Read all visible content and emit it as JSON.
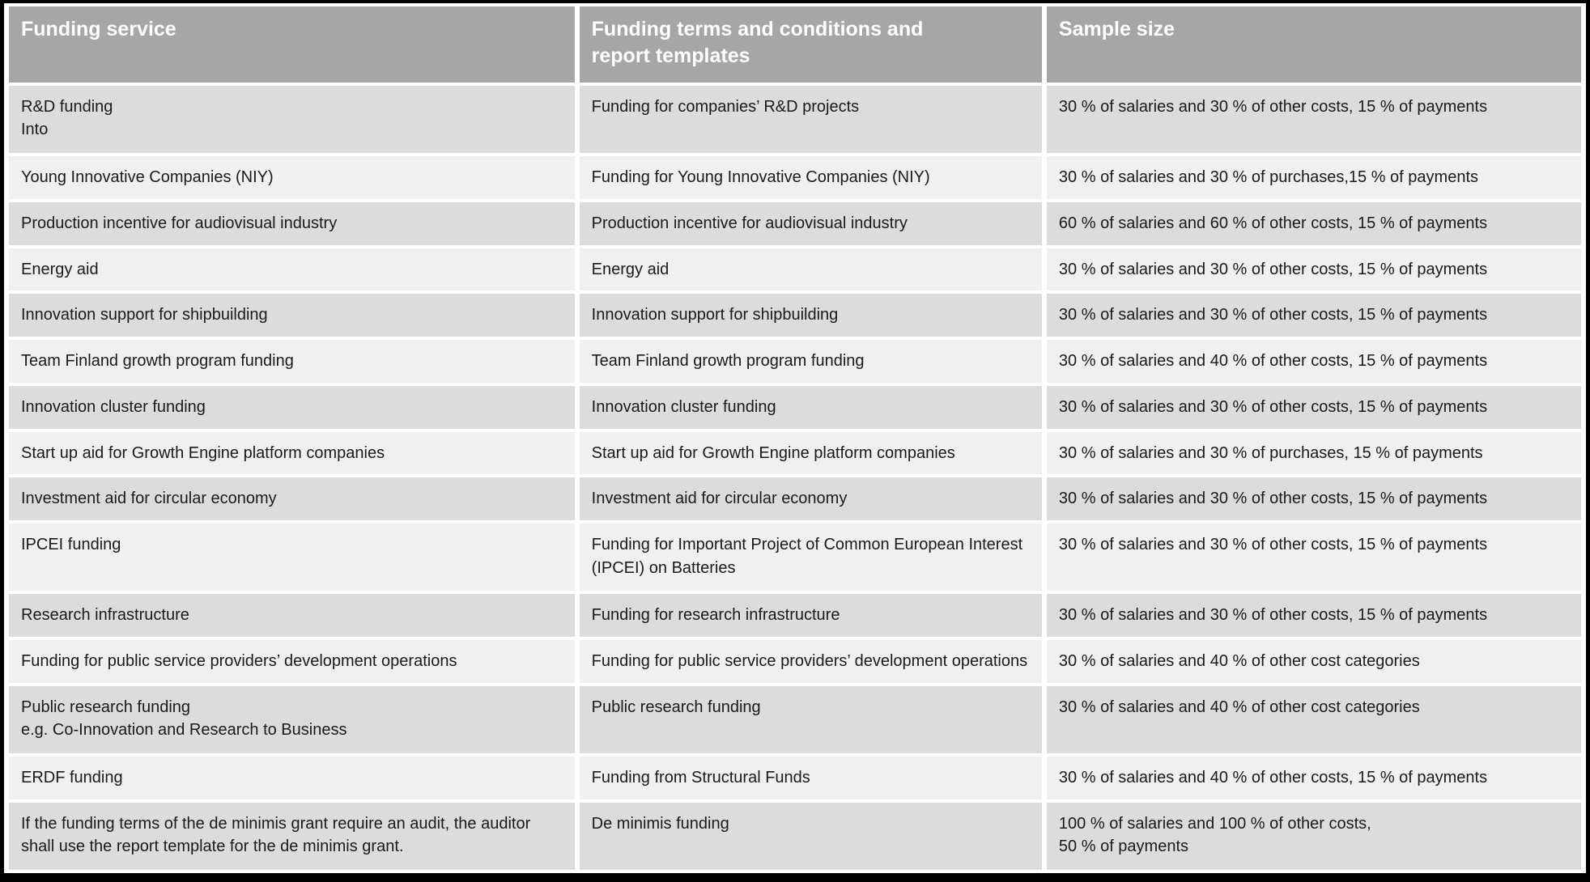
{
  "colors": {
    "frame": "#000000",
    "grid": "#ffffff",
    "header_bg": "#a6a6a6",
    "header_text": "#ffffff",
    "row_odd_bg": "#dcdcdc",
    "row_even_bg": "#f0f0f0",
    "body_text": "#1a1a1a"
  },
  "table": {
    "columns": {
      "service": "Funding service",
      "terms": "Funding terms and conditions and\nreport templates",
      "sample": "Sample size"
    },
    "rows": [
      {
        "service": "R&D funding\nInto",
        "terms": "Funding for companies’ R&D projects",
        "sample": "30 % of salaries and 30 % of other costs, 15 % of payments"
      },
      {
        "service": "Young Innovative Companies (NIY)",
        "terms": "Funding for Young Innovative Companies (NIY)",
        "sample": "30 % of salaries and 30 % of purchases,15 % of payments"
      },
      {
        "service": "Production incentive for audiovisual industry",
        "terms": "Production incentive for audiovisual industry",
        "sample": "60 % of salaries and 60 % of other costs, 15 % of payments"
      },
      {
        "service": "Energy aid",
        "terms": "Energy aid",
        "sample": "30 % of salaries and 30 % of other costs, 15 % of payments"
      },
      {
        "service": "Innovation support for shipbuilding",
        "terms": "Innovation support for shipbuilding",
        "sample": "30 % of salaries and 30 % of other costs, 15 % of payments"
      },
      {
        "service": "Team Finland growth program funding",
        "terms": "Team Finland growth program funding",
        "sample": "30 % of salaries and 40 % of other costs, 15 % of payments"
      },
      {
        "service": "Innovation cluster funding",
        "terms": "Innovation cluster funding",
        "sample": "30 % of salaries and 30 % of other costs, 15 % of payments"
      },
      {
        "service": "Start up aid for Growth Engine platform companies",
        "terms": "Start up aid for Growth Engine platform companies",
        "sample": "30 % of salaries and 30 % of purchases, 15 % of payments"
      },
      {
        "service": "Investment aid for circular economy",
        "terms": "Investment aid for circular economy",
        "sample": "30 % of salaries and 30 % of other costs, 15 % of payments"
      },
      {
        "service": "IPCEI funding",
        "terms": "Funding for Important Project of Common European Interest (IPCEI) on Batteries",
        "sample": "30 % of salaries and 30 % of other costs, 15 % of payments"
      },
      {
        "service": "Research infrastructure",
        "terms": "Funding for research infrastructure",
        "sample": "30 % of salaries and 30 % of other costs, 15 % of payments"
      },
      {
        "service": "Funding for public service providers’ development operations",
        "terms": "Funding for public service providers’ development operations",
        "sample": "30 % of salaries and 40 % of other cost categories"
      },
      {
        "service": "Public research funding\ne.g.  Co-Innovation and Research to Business",
        "terms": "Public research funding",
        "sample": "30 % of salaries and 40 % of other cost categories"
      },
      {
        "service": "ERDF funding",
        "terms": "Funding from Structural Funds",
        "sample": "30 % of salaries and 40 % of other costs, 15 % of payments"
      },
      {
        "service": "If the funding terms of the de minimis grant require an audit, the auditor shall use the report template for the de minimis grant.",
        "terms": "De minimis funding",
        "sample": "100 % of salaries and 100 % of other costs,\n50 % of payments"
      }
    ]
  }
}
